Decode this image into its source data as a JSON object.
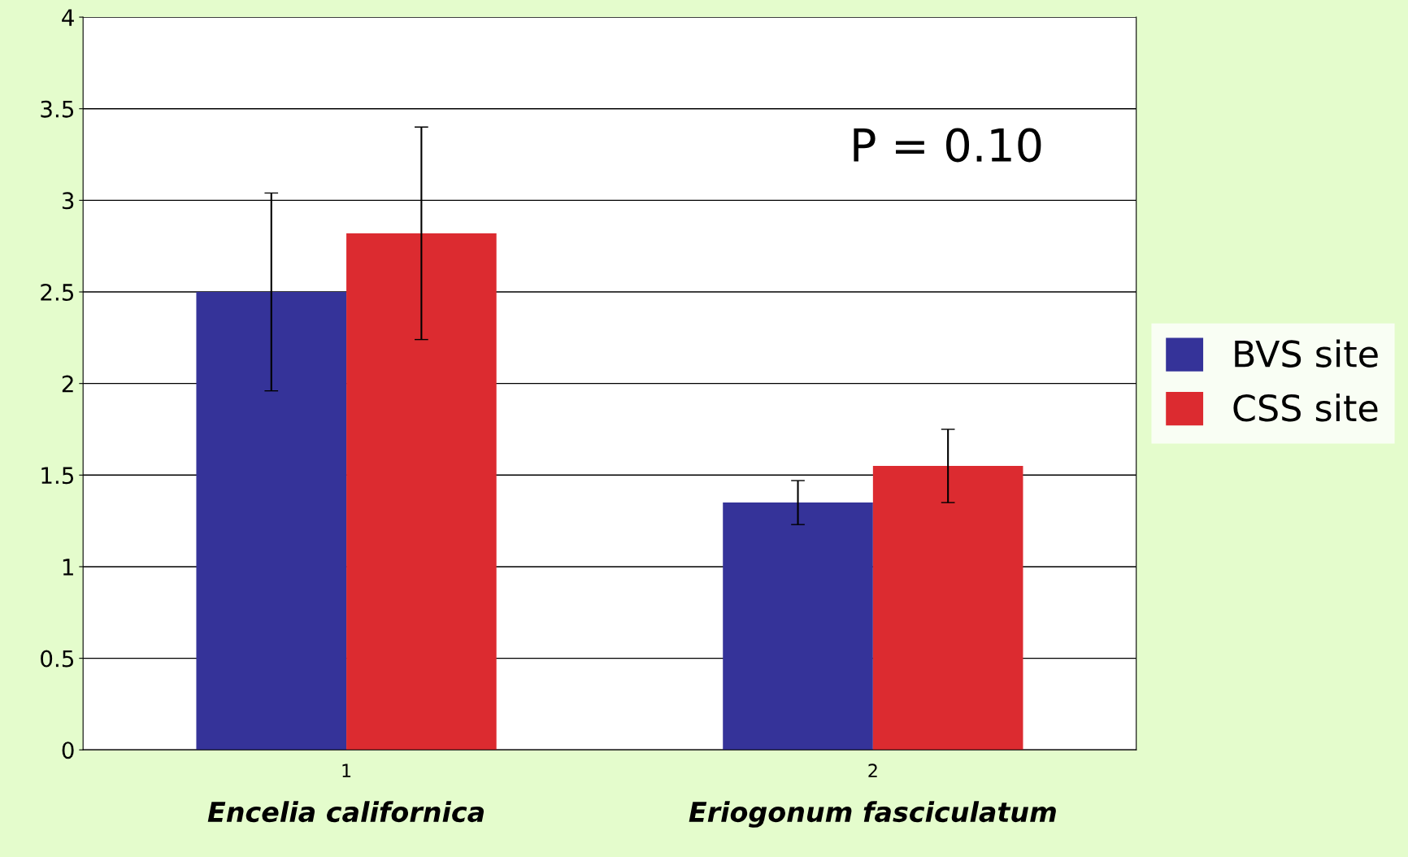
{
  "chart_data": {
    "type": "bar",
    "categories": [
      "1",
      "2"
    ],
    "series": [
      {
        "name": "BVS site",
        "color": "#353399",
        "values": [
          2.5,
          1.35
        ],
        "errors": [
          0.54,
          0.12
        ]
      },
      {
        "name": "CSS site",
        "color": "#dc2b30",
        "values": [
          2.82,
          1.55
        ],
        "errors": [
          0.58,
          0.2
        ]
      }
    ],
    "ylim": [
      0,
      4
    ],
    "yticks": [
      0,
      0.5,
      1,
      1.5,
      2,
      2.5,
      3,
      3.5,
      4
    ],
    "grid": "y",
    "legend": "right",
    "annotations": [
      "Encelia californica",
      "Eriogonum fasciculatum",
      "P = 0.10"
    ]
  }
}
